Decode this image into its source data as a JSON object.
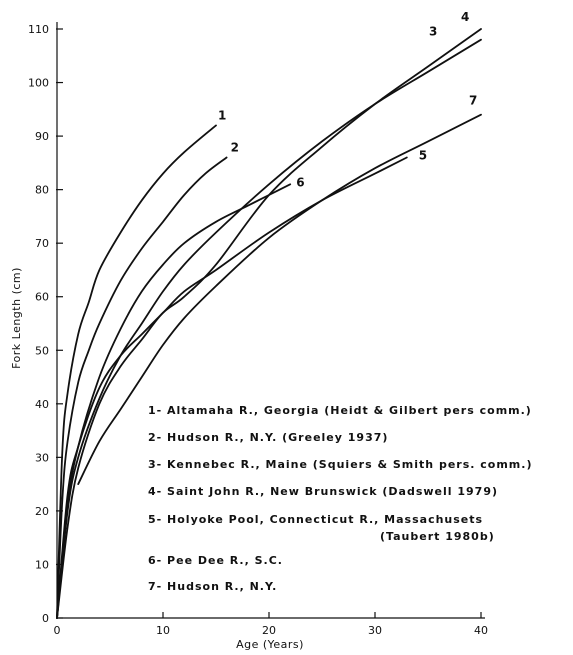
{
  "chart_data": {
    "type": "line",
    "title": "",
    "xlabel": "Age (Years)",
    "ylabel": "Fork Length (cm)",
    "xlim": [
      0,
      40
    ],
    "ylim": [
      0,
      110
    ],
    "xticks": [
      0,
      10,
      20,
      30,
      40
    ],
    "yticks": [
      0,
      10,
      20,
      30,
      40,
      50,
      60,
      70,
      80,
      90,
      100,
      110
    ],
    "grid": false,
    "series": [
      {
        "name": "1",
        "x": [
          0,
          0.5,
          1,
          2,
          3,
          4,
          6,
          8,
          10,
          12,
          15
        ],
        "y": [
          0,
          31,
          42,
          53,
          59,
          65,
          72,
          78,
          83,
          87,
          92
        ]
      },
      {
        "name": "2",
        "x": [
          0,
          0.5,
          1,
          2,
          3,
          4,
          6,
          8,
          10,
          12,
          14,
          16
        ],
        "y": [
          0,
          22,
          33,
          44,
          50,
          55,
          63,
          69,
          74,
          79,
          83,
          86
        ]
      },
      {
        "name": "3",
        "x": [
          0,
          1,
          2,
          4,
          6,
          8,
          10,
          12,
          15,
          20,
          25,
          30,
          35,
          40
        ],
        "y": [
          0,
          20,
          30,
          41,
          49,
          55,
          61,
          66,
          72,
          81,
          89,
          96,
          102,
          108
        ]
      },
      {
        "name": "4",
        "x": [
          0,
          1,
          2,
          4,
          6,
          8,
          10,
          12,
          15,
          20,
          25,
          30,
          35,
          40
        ],
        "y": [
          0,
          17,
          28,
          40,
          47,
          52,
          57,
          60,
          66,
          79,
          88,
          96,
          103,
          110
        ]
      },
      {
        "name": "5",
        "x": [
          0,
          1,
          2,
          4,
          6,
          8,
          10,
          12,
          15,
          20,
          25,
          30,
          33
        ],
        "y": [
          0,
          23,
          32,
          43,
          49,
          53,
          57,
          61,
          65,
          72,
          78,
          83,
          86
        ]
      },
      {
        "name": "6",
        "x": [
          0,
          1,
          2,
          4,
          6,
          8,
          10,
          12,
          15,
          18,
          20,
          22
        ],
        "y": [
          0,
          21,
          32,
          45,
          54,
          61,
          66,
          70,
          74,
          77,
          79,
          81
        ]
      },
      {
        "name": "7",
        "x": [
          2,
          4,
          6,
          8,
          10,
          12,
          15,
          20,
          25,
          30,
          35,
          40
        ],
        "y": [
          25,
          33,
          39,
          45,
          51,
          56,
          62,
          71,
          78,
          84,
          89,
          94
        ]
      }
    ],
    "curve_labels": [
      "1",
      "2",
      "3",
      "4",
      "5",
      "6",
      "7"
    ],
    "legend": {
      "placement": "center-right",
      "entries": [
        "1- Altamaha R., Georgia (Heidt & Gilbert pers comm.)",
        "2- Hudson R., N.Y. (Greeley 1937)",
        "3- Kennebec R., Maine (Squiers & Smith pers. comm.)",
        "4- Saint John R., New Brunswick (Dadswell 1979)",
        "5- Holyoke Pool, Connecticut R., Massachusets",
        "(Taubert 1980b)",
        "6- Pee Dee R., S.C.",
        "7- Hudson R., N.Y."
      ]
    }
  }
}
